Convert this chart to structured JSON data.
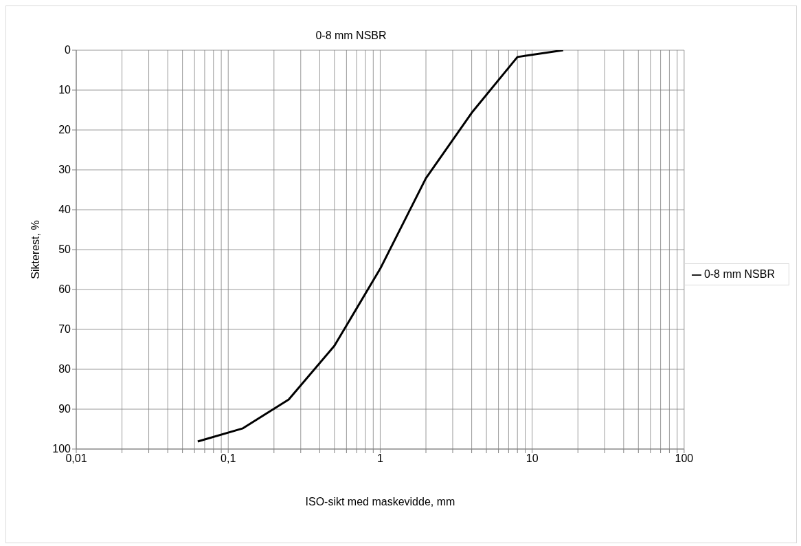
{
  "chart_data": {
    "type": "line",
    "title": "0-8 mm NSBR",
    "xlabel": "ISO-sikt med maskevidde, mm",
    "ylabel": "Sikterest, %",
    "x": [
      0.063,
      0.125,
      0.25,
      0.5,
      1,
      2,
      4,
      8,
      16
    ],
    "series": [
      {
        "name": "0-8 mm NSBR",
        "color": "#000000",
        "values": [
          98.1,
          94.8,
          87.6,
          74.1,
          54.8,
          32.1,
          15.7,
          1.7,
          0
        ]
      }
    ],
    "log": "x",
    "xlim": [
      0.01,
      100
    ],
    "xticks": [
      {
        "value": 0.01,
        "label": "0,01"
      },
      {
        "value": 0.02,
        "label": null
      },
      {
        "value": 0.03,
        "label": null
      },
      {
        "value": 0.04,
        "label": null
      },
      {
        "value": 0.05,
        "label": null
      },
      {
        "value": 0.06,
        "label": null
      },
      {
        "value": 0.07,
        "label": null
      },
      {
        "value": 0.08,
        "label": null
      },
      {
        "value": 0.09,
        "label": null
      },
      {
        "value": 0.1,
        "label": "0,1"
      },
      {
        "value": 0.2,
        "label": null
      },
      {
        "value": 0.3,
        "label": null
      },
      {
        "value": 0.4,
        "label": null
      },
      {
        "value": 0.5,
        "label": null
      },
      {
        "value": 0.6,
        "label": null
      },
      {
        "value": 0.7,
        "label": null
      },
      {
        "value": 0.8,
        "label": null
      },
      {
        "value": 0.9,
        "label": null
      },
      {
        "value": 1,
        "label": "1"
      },
      {
        "value": 2,
        "label": null
      },
      {
        "value": 3,
        "label": null
      },
      {
        "value": 4,
        "label": null
      },
      {
        "value": 5,
        "label": null
      },
      {
        "value": 6,
        "label": null
      },
      {
        "value": 7,
        "label": null
      },
      {
        "value": 8,
        "label": null
      },
      {
        "value": 9,
        "label": null
      },
      {
        "value": 10,
        "label": "10"
      },
      {
        "value": 20,
        "label": null
      },
      {
        "value": 30,
        "label": null
      },
      {
        "value": 40,
        "label": null
      },
      {
        "value": 50,
        "label": null
      },
      {
        "value": 60,
        "label": null
      },
      {
        "value": 70,
        "label": null
      },
      {
        "value": 80,
        "label": null
      },
      {
        "value": 90,
        "label": null
      },
      {
        "value": 100,
        "label": "100"
      }
    ],
    "ylim": [
      100,
      0
    ],
    "yticks": [
      0,
      10,
      20,
      30,
      40,
      50,
      60,
      70,
      80,
      90,
      100
    ],
    "grid": true,
    "legend": "right"
  }
}
